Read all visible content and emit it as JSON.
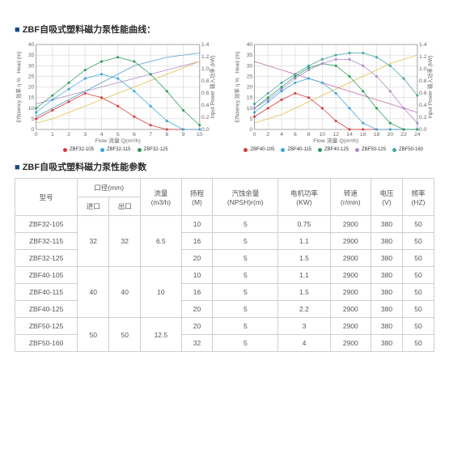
{
  "titles": {
    "curves": "ZBF自吸式塑料磁力泵性能曲线：",
    "params": "ZBF自吸式塑料磁力泵性能参数"
  },
  "headers": {
    "model": "型号",
    "caliber": "口径(mm)",
    "in": "进口",
    "out": "出口",
    "flow": "流量",
    "flow_unit": "(m3/h)",
    "head": "扬程",
    "head_unit": "(M)",
    "npsh": "汽蚀余量",
    "npsh_unit": "(NPSH)r(m)",
    "power": "电机功率",
    "power_unit": "(KW)",
    "speed": "转速",
    "speed_unit": "(r/min)",
    "voltage": "电压",
    "voltage_unit": "(V)",
    "freq": "频率",
    "freq_unit": "(HZ)"
  },
  "chart1": {
    "xmax": 10,
    "xstep": 1,
    "ymax": 40,
    "ystep": 5,
    "xlabel": "Flow 流量 Q(m³/h)",
    "series": [
      {
        "name": "ZBF32-105",
        "color": "#d93a3a",
        "vals": [
          5,
          9,
          13,
          17,
          15,
          11,
          6,
          2,
          0,
          0,
          0
        ]
      },
      {
        "name": "ZBF32-115",
        "color": "#3aa5d9",
        "vals": [
          8,
          14,
          19,
          24,
          26,
          24,
          18,
          11,
          4,
          0,
          0
        ]
      },
      {
        "name": "ZBF32-125",
        "color": "#2a9c5a",
        "vals": [
          10,
          16,
          22,
          28,
          32,
          34,
          32,
          26,
          18,
          9,
          2
        ]
      }
    ],
    "extras": [
      {
        "color": "#b088c8",
        "vals": [
          12,
          14,
          16,
          18,
          20,
          22,
          24,
          26,
          28,
          30,
          32
        ]
      },
      {
        "color": "#5aa0c8",
        "vals": [
          6,
          10,
          14,
          18,
          22,
          26,
          30,
          32,
          34,
          35,
          36
        ]
      },
      {
        "color": "#e2c14a",
        "vals": [
          3,
          5,
          8,
          11,
          14,
          17,
          20,
          23,
          26,
          29,
          32
        ]
      }
    ]
  },
  "chart2": {
    "xmax": 24,
    "xstep": 2,
    "ymax": 40,
    "ystep": 5,
    "xlabel": "Flow 流量 Q(m³/h)",
    "series": [
      {
        "name": "ZBF40-105",
        "color": "#d93a3a",
        "vals": [
          6,
          10,
          14,
          17,
          15,
          10,
          4,
          0,
          0,
          0,
          0,
          0,
          0
        ]
      },
      {
        "name": "ZBF40-115",
        "color": "#3aa5d9",
        "vals": [
          8,
          13,
          18,
          22,
          24,
          22,
          17,
          10,
          3,
          0,
          0,
          0,
          0
        ]
      },
      {
        "name": "ZBF40-125",
        "color": "#2a9c5a",
        "vals": [
          10,
          15,
          20,
          25,
          29,
          31,
          30,
          25,
          18,
          10,
          3,
          0,
          0
        ]
      },
      {
        "name": "ZBF50-125",
        "color": "#b088c8",
        "vals": [
          10,
          14,
          19,
          24,
          28,
          31,
          33,
          33,
          30,
          25,
          18,
          10,
          3
        ]
      },
      {
        "name": "ZBF50-160",
        "color": "#4aa3a3",
        "vals": [
          12,
          17,
          22,
          26,
          30,
          33,
          35,
          36,
          36,
          34,
          30,
          24,
          16
        ]
      }
    ],
    "extras": [
      {
        "color": "#e2c14a",
        "vals": [
          3,
          5,
          7,
          10,
          13,
          16,
          19,
          22,
          25,
          28,
          31,
          33,
          35
        ]
      },
      {
        "color": "#c86aa8",
        "vals": [
          32,
          30,
          28,
          26,
          24,
          22,
          20,
          18,
          16,
          14,
          12,
          10,
          8
        ]
      }
    ]
  },
  "rows": [
    {
      "model": "ZBF32-105",
      "head": "10",
      "npsh": "5",
      "power": "0.75"
    },
    {
      "model": "ZBF32-115",
      "head": "16",
      "npsh": "5",
      "power": "1.1"
    },
    {
      "model": "ZBF32-125",
      "head": "20",
      "npsh": "5",
      "power": "1.5"
    },
    {
      "model": "ZBF40-105",
      "head": "10",
      "npsh": "5",
      "power": "1.1"
    },
    {
      "model": "ZBF40-115",
      "head": "16",
      "npsh": "5",
      "power": "1.5"
    },
    {
      "model": "ZBF40-125",
      "head": "20",
      "npsh": "5",
      "power": "2.2"
    },
    {
      "model": "ZBF50-125",
      "head": "20",
      "npsh": "5",
      "power": "3"
    },
    {
      "model": "ZBF50-160",
      "head": "32",
      "npsh": "5",
      "power": "4"
    }
  ],
  "groups": [
    {
      "in": "32",
      "out": "32",
      "flow": "6.5",
      "span": 3
    },
    {
      "in": "40",
      "out": "40",
      "flow": "10",
      "span": 3
    },
    {
      "in": "50",
      "out": "50",
      "flow": "12.5",
      "span": 2
    }
  ],
  "common": {
    "speed": "2900",
    "voltage": "380",
    "freq": "50"
  }
}
